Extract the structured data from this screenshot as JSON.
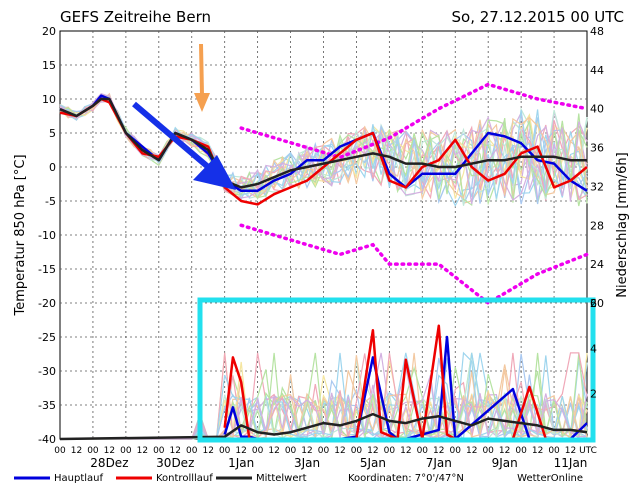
{
  "header": {
    "title": "GEFS Zeitreihe Bern",
    "date": "So, 27.12.2015 00 UTC"
  },
  "chart_data": {
    "type": "line",
    "title": "GEFS Zeitreihe Bern",
    "ylabel_left": "Temperatur 850 hPa [°C]",
    "ylabel_right": "Niederschlag [mm/6h]",
    "ylim_left": [
      -40,
      20
    ],
    "ylim_right_upper": [
      20,
      48
    ],
    "ylim_right_lower": [
      0,
      6
    ],
    "x_hours": [
      0,
      384
    ],
    "y_ticks_left": [
      "20",
      "15",
      "10",
      "5",
      "0",
      "-5",
      "-10",
      "-15",
      "-20",
      "-25",
      "-30",
      "-35",
      "-40"
    ],
    "y_ticks_right": [
      "48",
      "44",
      "40",
      "36",
      "32",
      "28",
      "24",
      "20",
      "6",
      "4",
      "2"
    ],
    "x_hour_ticks": [
      "00",
      "12",
      "00",
      "12",
      "00",
      "12",
      "00",
      "12",
      "00",
      "12",
      "00",
      "12",
      "00",
      "12",
      "00",
      "12",
      "00",
      "12",
      "00",
      "12",
      "00",
      "12",
      "00",
      "12",
      "00",
      "12",
      "00",
      "12",
      "00",
      "12",
      "00",
      "12",
      "UTC"
    ],
    "x_date_labels": [
      {
        "h": 36,
        "label": "28Dez"
      },
      {
        "h": 84,
        "label": "30Dez"
      },
      {
        "h": 132,
        "label": "1Jan"
      },
      {
        "h": 180,
        "label": "3Jan"
      },
      {
        "h": 228,
        "label": "5Jan"
      },
      {
        "h": 276,
        "label": "7Jan"
      },
      {
        "h": 324,
        "label": "9Jan"
      },
      {
        "h": 372,
        "label": "11Jan"
      }
    ],
    "series": [
      {
        "name": "Hauptlauf",
        "color": "#0000dd",
        "x": [
          0,
          12,
          24,
          30,
          36,
          48,
          60,
          72,
          84,
          96,
          108,
          120,
          132,
          144,
          156,
          168,
          180,
          192,
          204,
          216,
          228,
          240,
          252,
          264,
          276,
          288,
          300,
          312,
          324,
          336,
          348,
          360,
          372,
          384
        ],
        "values": [
          8.5,
          7.5,
          9,
          10.5,
          10,
          5,
          3,
          1,
          5,
          4,
          2,
          -2,
          -3.5,
          -3.5,
          -2,
          -1,
          1,
          1,
          3,
          4,
          5,
          -1,
          -3,
          -1,
          -1,
          -1,
          2,
          5,
          4.5,
          3.5,
          1,
          0.5,
          -2,
          -3.5
        ]
      },
      {
        "name": "Kontrolllauf",
        "color": "#ee0000",
        "x": [
          0,
          12,
          24,
          30,
          36,
          48,
          60,
          72,
          84,
          96,
          108,
          120,
          132,
          144,
          156,
          168,
          180,
          192,
          204,
          216,
          228,
          240,
          252,
          264,
          276,
          288,
          300,
          312,
          324,
          336,
          348,
          360,
          372,
          384
        ],
        "values": [
          8,
          7.5,
          9,
          10,
          9.5,
          5,
          2,
          1.5,
          4.5,
          4,
          3,
          -3,
          -5,
          -5.5,
          -4,
          -3,
          -2,
          0,
          2,
          4,
          5,
          -2,
          -3,
          0,
          1,
          4,
          0,
          -2,
          -1,
          2,
          3,
          -3,
          -2,
          0
        ]
      },
      {
        "name": "Mittelwert",
        "color": "#222222",
        "x": [
          0,
          12,
          24,
          30,
          36,
          48,
          60,
          72,
          84,
          96,
          108,
          120,
          132,
          144,
          156,
          168,
          180,
          192,
          204,
          216,
          228,
          240,
          252,
          264,
          276,
          288,
          300,
          312,
          324,
          336,
          348,
          360,
          372,
          384
        ],
        "values": [
          8.5,
          7.5,
          9,
          10,
          10,
          5,
          2.5,
          1,
          5,
          4,
          2.5,
          -2,
          -3,
          -2.5,
          -1.5,
          -0.5,
          0,
          0.5,
          1,
          1.5,
          2,
          1.5,
          0.5,
          0.5,
          0,
          0,
          0.5,
          1,
          1,
          1.5,
          1.5,
          1.5,
          1,
          1
        ]
      }
    ],
    "precip_series": [
      {
        "name": "Hauptlauf",
        "x": [
          120,
          126,
          132,
          138,
          144,
          150,
          204,
          216,
          228,
          240,
          246,
          252,
          258,
          276,
          282,
          288,
          330,
          342,
          372,
          384
        ],
        "values": [
          0.2,
          1.4,
          0.1,
          0.1,
          0,
          0,
          0,
          0.1,
          3.6,
          0.3,
          0,
          0,
          0.1,
          0.4,
          4.5,
          0,
          2.2,
          0,
          0,
          0.7
        ]
      },
      {
        "name": "Kontrolllauf",
        "x": [
          120,
          126,
          132,
          138,
          144,
          150,
          204,
          216,
          228,
          234,
          246,
          252,
          264,
          276,
          282,
          288,
          330,
          342,
          354,
          360,
          372,
          384
        ],
        "values": [
          0.5,
          3.6,
          2.5,
          0,
          0,
          0,
          0,
          0,
          4.8,
          0.3,
          0,
          3.5,
          0,
          5.0,
          0.2,
          0,
          0,
          2.3,
          0,
          0,
          0,
          0
        ]
      },
      {
        "name": "Mittelwert",
        "x": [
          0,
          120,
          132,
          144,
          156,
          168,
          180,
          192,
          204,
          216,
          228,
          240,
          252,
          264,
          276,
          288,
          300,
          312,
          324,
          336,
          348,
          360,
          372,
          384
        ],
        "values": [
          0,
          0.1,
          0.6,
          0.3,
          0.2,
          0.3,
          0.5,
          0.7,
          0.6,
          0.8,
          1.1,
          0.8,
          0.7,
          0.9,
          1.0,
          0.8,
          0.6,
          0.9,
          0.8,
          0.7,
          0.6,
          0.4,
          0.4,
          0.3
        ]
      }
    ],
    "envelope_upper": {
      "x": [
        132,
        204,
        240,
        276,
        312,
        348,
        384
      ],
      "values": [
        38,
        35,
        37,
        40,
        42.5,
        41,
        40
      ]
    },
    "envelope_lower": {
      "x": [
        132,
        204,
        228,
        240,
        276,
        312,
        348,
        384
      ],
      "values": [
        28,
        25,
        26,
        24,
        24,
        20,
        23,
        25
      ]
    },
    "legend": [
      {
        "label": "Hauptlauf",
        "color": "#0000dd"
      },
      {
        "label": "Kontrolllauf",
        "color": "#ee0000"
      },
      {
        "label": "Mittelwert",
        "color": "#222222"
      }
    ],
    "footer": {
      "coords": "Koordinaten: 7°0'/47°N",
      "source": "WetterOnline"
    }
  }
}
